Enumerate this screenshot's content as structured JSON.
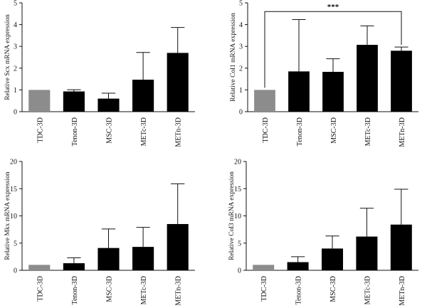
{
  "chart_data": [
    {
      "type": "bar",
      "ylabel": "Relative Scx mRNA expression",
      "categories": [
        "TDC-3D",
        "Tenon-3D",
        "MSC-3D",
        "METc-3D",
        "METn-3D"
      ],
      "values": [
        1.0,
        0.93,
        0.6,
        1.47,
        2.7
      ],
      "errors": [
        0,
        0.08,
        0.25,
        1.25,
        1.17
      ],
      "colors": [
        "#8c8c8c",
        "#000000",
        "#000000",
        "#000000",
        "#000000"
      ],
      "ylim": [
        0,
        5
      ],
      "yticks": [
        "0",
        "1",
        "2",
        "3",
        "4",
        "5"
      ],
      "significance": null
    },
    {
      "type": "bar",
      "ylabel": "Relative Col1 mRNA expression",
      "categories": [
        "TDC-3D",
        "Tenon-3D",
        "MSC-3D",
        "METc-3D",
        "METn-3D"
      ],
      "values": [
        1.0,
        1.85,
        1.83,
        3.07,
        2.8
      ],
      "errors": [
        0,
        2.38,
        0.6,
        0.87,
        0.17
      ],
      "colors": [
        "#8c8c8c",
        "#000000",
        "#000000",
        "#000000",
        "#000000"
      ],
      "ylim": [
        0,
        5
      ],
      "yticks": [
        "0",
        "1",
        "2",
        "3",
        "4",
        "5"
      ],
      "significance": {
        "from": 0,
        "to": 4,
        "label": "***",
        "level": 4.6
      }
    },
    {
      "type": "bar",
      "ylabel": "Relative Mkx mRNA expression",
      "categories": [
        "TDC-3D",
        "Tenon-3D",
        "MSC-3D",
        "METc-3D",
        "METn-3D"
      ],
      "values": [
        1.0,
        1.3,
        4.1,
        4.3,
        8.5
      ],
      "errors": [
        0,
        1.0,
        3.5,
        3.6,
        7.4
      ],
      "colors": [
        "#8c8c8c",
        "#000000",
        "#000000",
        "#000000",
        "#000000"
      ],
      "ylim": [
        0,
        20
      ],
      "yticks": [
        "0",
        "5",
        "10",
        "15",
        "20"
      ],
      "significance": null
    },
    {
      "type": "bar",
      "ylabel": "Relative Col3 mRNA expression",
      "categories": [
        "TDC-3D",
        "Tenon-3D",
        "MSC-3D",
        "METc-3D",
        "METn-3D"
      ],
      "values": [
        1.0,
        1.5,
        4.0,
        6.2,
        8.4
      ],
      "errors": [
        0,
        1.0,
        2.3,
        5.2,
        6.5
      ],
      "colors": [
        "#8c8c8c",
        "#000000",
        "#000000",
        "#000000",
        "#000000"
      ],
      "ylim": [
        0,
        20
      ],
      "yticks": [
        "0",
        "5",
        "10",
        "15",
        "20"
      ],
      "significance": null
    }
  ]
}
